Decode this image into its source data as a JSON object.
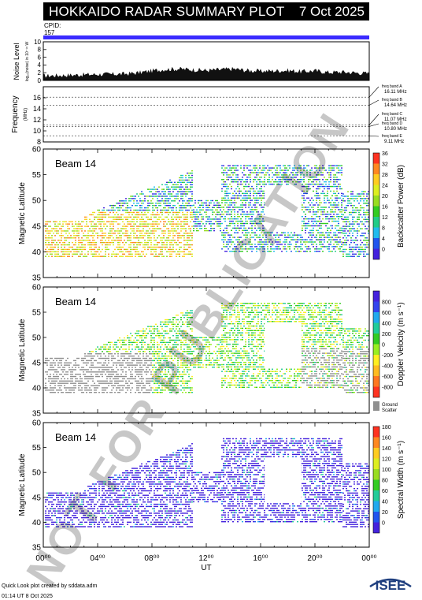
{
  "header": {
    "title": "HOKKAIDO RADAR SUMMARY PLOT",
    "date": "7 Oct 2025",
    "cpid_label": "CPID:",
    "cpid_value": "157"
  },
  "footer": {
    "line1": "Quick Look plot created by sddata.adm",
    "line2": "01:14 UT  8 Oct 2025",
    "logo_text": "ISEE"
  },
  "watermark": "NOT FOR PUBLICATION",
  "colors": {
    "cpid_bar": "#3a2bff",
    "ground_scatter": "#909090"
  },
  "chart_data": [
    {
      "type": "area",
      "id": "noise",
      "ylabel": "Noise Level",
      "ylabel_sub": "log₁₀(noise) in 10⁻¹⁶ W",
      "ylim": [
        0,
        10
      ],
      "yticks": [
        "0",
        "2",
        "4",
        "6",
        "8",
        "10"
      ],
      "x": [
        0,
        1,
        2,
        3,
        4,
        5,
        6,
        7,
        8,
        9,
        10,
        11,
        12,
        13,
        14,
        15,
        16,
        17,
        18,
        19,
        20,
        21,
        22,
        23,
        24
      ],
      "values": [
        1.2,
        1.3,
        1.4,
        1.5,
        1.6,
        1.6,
        1.7,
        2.0,
        2.5,
        2.9,
        3.0,
        2.8,
        2.6,
        2.8,
        3.0,
        2.6,
        2.4,
        2.5,
        2.6,
        2.3,
        2.5,
        2.1,
        2.2,
        2.0,
        1.8
      ]
    },
    {
      "type": "line",
      "id": "frequency",
      "ylabel": "Frequency",
      "ylabel_sub": "(MHz)",
      "ylim": [
        8,
        18
      ],
      "yticks": [
        "8",
        "10",
        "12",
        "14",
        "16"
      ],
      "series": [
        {
          "values": [
            16.11
          ]
        },
        {
          "values": [
            14.64
          ]
        },
        {
          "values": [
            11.07
          ]
        },
        {
          "values": [
            10.8
          ]
        },
        {
          "values": [
            9.11
          ]
        }
      ],
      "freq_bands": [
        {
          "label": "freq band A",
          "value": "16.11 MHz"
        },
        {
          "label": "freq band B",
          "value": "14.64 MHz"
        },
        {
          "label": "freq band C",
          "value": "11.07 MHz"
        },
        {
          "label": "freq band D",
          "value": "10.80 MHz"
        },
        {
          "label": "freq band E",
          "value": "9.11 MHz"
        }
      ]
    },
    {
      "type": "heatmap",
      "id": "power",
      "beam": "Beam 14",
      "ylabel": "Magnetic Latitude",
      "ylim": [
        35,
        60
      ],
      "yticks": [
        "35",
        "40",
        "45",
        "50",
        "55",
        "60"
      ],
      "colorbar_label": "Backscatter Power (dB)",
      "colorbar_ticks": [
        "0",
        "4",
        "8",
        "12",
        "16",
        "20",
        "24",
        "28",
        "32",
        "36"
      ],
      "colorbar_colors": [
        "#4422dd",
        "#2255ee",
        "#22bbee",
        "#22cc88",
        "#33cc22",
        "#99dd22",
        "#ddee22",
        "#ffcc22",
        "#ff8822",
        "#ff3322"
      ]
    },
    {
      "type": "heatmap",
      "id": "velocity",
      "beam": "Beam 14",
      "ylabel": "Magnetic Latitude",
      "ylim": [
        35,
        60
      ],
      "yticks": [
        "35",
        "40",
        "45",
        "50",
        "55",
        "60"
      ],
      "colorbar_label": "Doppler Velocity (m s⁻¹)",
      "colorbar_ticks": [
        "-800",
        "-600",
        "-400",
        "-200",
        "0",
        "200",
        "400",
        "600",
        "800"
      ],
      "colorbar_colors": [
        "#ff3322",
        "#ff7722",
        "#ffbb22",
        "#ffee22",
        "#99ee22",
        "#33cc22",
        "#22cc99",
        "#22aaee",
        "#3344ee",
        "#4422dd"
      ],
      "ground_scatter_label": "Ground Scatter"
    },
    {
      "type": "heatmap",
      "id": "width",
      "beam": "Beam 14",
      "ylabel": "Magnetic Latitude",
      "ylim": [
        35,
        60
      ],
      "yticks": [
        "35",
        "40",
        "45",
        "50",
        "55",
        "60"
      ],
      "colorbar_label": "Spectral Width (m s⁻¹)",
      "colorbar_ticks": [
        "0",
        "20",
        "40",
        "60",
        "80",
        "100",
        "120",
        "140",
        "160",
        "180"
      ],
      "colorbar_colors": [
        "#4422dd",
        "#2255ee",
        "#22aaee",
        "#22cc99",
        "#33cc22",
        "#99dd22",
        "#ddee22",
        "#ffcc22",
        "#ff8822",
        "#ff3322"
      ]
    }
  ],
  "xaxis": {
    "label": "UT",
    "ticks": [
      "00⁰⁰",
      "04⁰⁰",
      "08⁰⁰",
      "12⁰⁰",
      "16⁰⁰",
      "20⁰⁰",
      "00⁰⁰"
    ],
    "range_hours": [
      0,
      24
    ]
  }
}
